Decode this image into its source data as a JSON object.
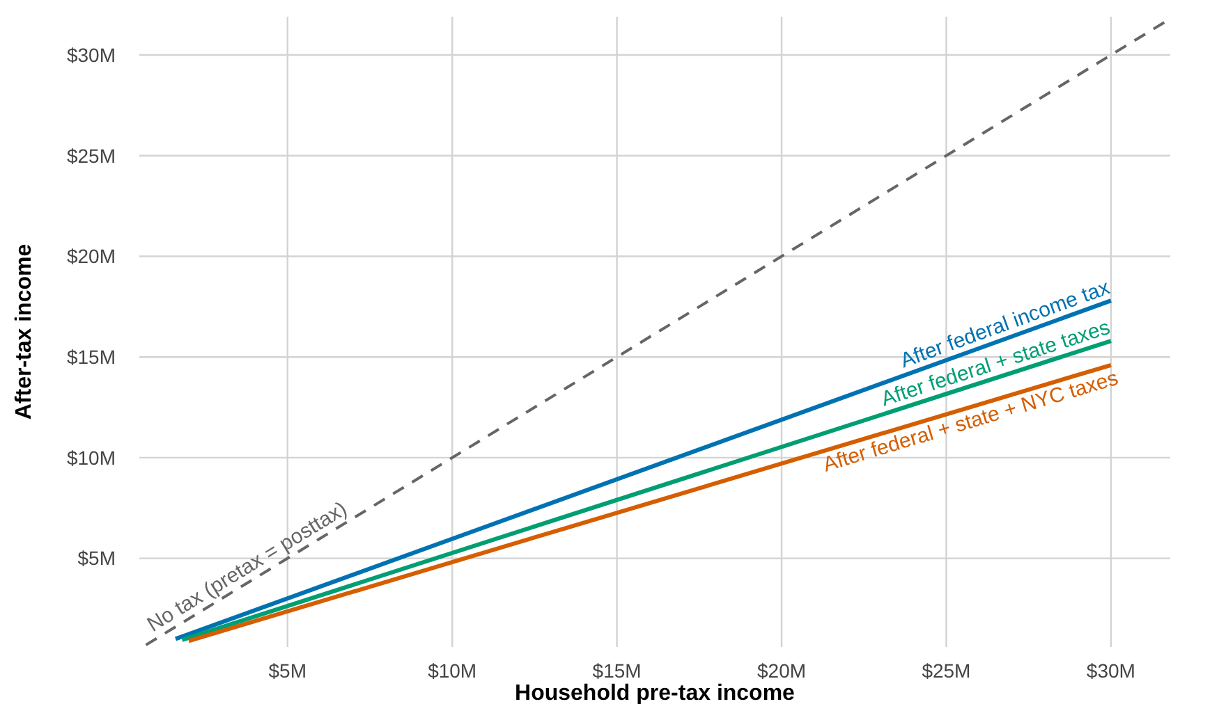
{
  "chart_data": {
    "type": "line",
    "xlabel": "Household pre-tax income",
    "ylabel": "After-tax income",
    "xlim": [
      0.5,
      31.8
    ],
    "ylim": [
      0.6,
      31.9
    ],
    "xticks": [
      {
        "value": 5,
        "label": "$5M"
      },
      {
        "value": 10,
        "label": "$10M"
      },
      {
        "value": 15,
        "label": "$15M"
      },
      {
        "value": 20,
        "label": "$20M"
      },
      {
        "value": 25,
        "label": "$25M"
      },
      {
        "value": 30,
        "label": "$30M"
      }
    ],
    "yticks": [
      {
        "value": 5,
        "label": "$5M"
      },
      {
        "value": 10,
        "label": "$10M"
      },
      {
        "value": 15,
        "label": "$15M"
      },
      {
        "value": 20,
        "label": "$20M"
      },
      {
        "value": 25,
        "label": "$25M"
      },
      {
        "value": 30,
        "label": "$30M"
      }
    ],
    "grid": true,
    "series": [
      {
        "name": "No tax (pretax = posttax)",
        "color": "#666666",
        "line_style": "dashed",
        "x": [
          0.7,
          31.8
        ],
        "values": [
          0.7,
          31.8
        ]
      },
      {
        "name": "After federal income tax",
        "color": "#0072b2",
        "x": [
          1.6,
          30
        ],
        "values": [
          1.0,
          17.8
        ]
      },
      {
        "name": "After federal + state taxes",
        "color": "#009e73",
        "x": [
          1.8,
          30
        ],
        "values": [
          0.95,
          15.8
        ]
      },
      {
        "name": "After federal + state + NYC taxes",
        "color": "#d55e00",
        "x": [
          2.0,
          30
        ],
        "values": [
          0.9,
          14.6
        ]
      }
    ]
  }
}
